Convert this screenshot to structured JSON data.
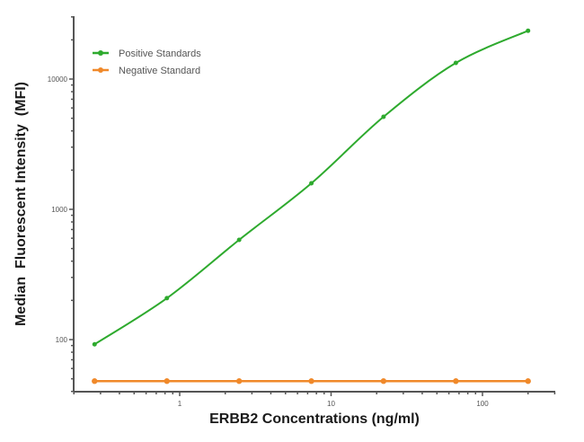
{
  "chart_data": {
    "type": "line",
    "title": "",
    "xlabel": "ERBB2 Concentrations (ng/ml)",
    "ylabel": "Median  Fluorescent Intensity  (MFI)",
    "xscale": "log",
    "yscale": "log",
    "xlim": [
      0.25,
      300
    ],
    "ylim": [
      40,
      30000
    ],
    "x_ticks": [
      {
        "value": 1,
        "label": "1"
      },
      {
        "value": 10,
        "label": "10"
      },
      {
        "value": 100,
        "label": "100"
      }
    ],
    "y_ticks": [
      {
        "value": 100,
        "label": "100"
      },
      {
        "value": 1000,
        "label": "1000"
      },
      {
        "value": 10000,
        "label": "10000"
      }
    ],
    "grid": false,
    "legend_position": "upper-left",
    "x": [
      0.274,
      0.823,
      2.47,
      7.41,
      22.2,
      66.7,
      200
    ],
    "series": [
      {
        "name": "Positive Standards",
        "color": "#2eaa2e",
        "marker": "circle",
        "fit": "smooth-curve",
        "values": [
          92,
          208,
          583,
          1585,
          5130,
          13300,
          23500
        ]
      },
      {
        "name": "Negative Standard",
        "color": "#f0892a",
        "marker": "circle",
        "fit": "line",
        "values": [
          48,
          48,
          48,
          48,
          48,
          48,
          48
        ]
      }
    ]
  }
}
